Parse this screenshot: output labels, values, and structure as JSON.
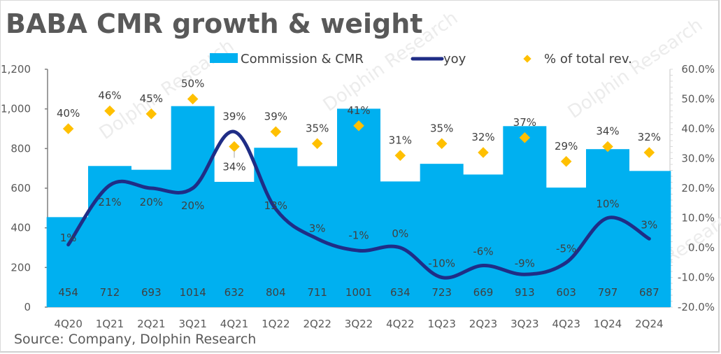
{
  "title": "BABA CMR growth & weight",
  "source": "Source: Company, Dolphin Research",
  "watermark": "Dolphin Research",
  "colors": {
    "bar": "#00b0f0",
    "line": "#1f2d86",
    "marker": "#ffc000",
    "text": "#595959",
    "axis": "#7f7f7f"
  },
  "chart_data": {
    "type": "bar+line+scatter",
    "title": "BABA CMR growth & weight",
    "categories": [
      "4Q20",
      "1Q21",
      "2Q21",
      "3Q21",
      "4Q21",
      "1Q22",
      "2Q22",
      "3Q22",
      "4Q22",
      "1Q23",
      "2Q23",
      "3Q23",
      "4Q23",
      "1Q24",
      "2Q24"
    ],
    "series": [
      {
        "name": "Commission & CMR",
        "type": "bar",
        "axis": "left",
        "values": [
          454,
          712,
          693,
          1014,
          632,
          804,
          711,
          1001,
          634,
          723,
          669,
          913,
          603,
          797,
          687
        ],
        "labels": [
          "454",
          "712",
          "693",
          "1014",
          "632",
          "804",
          "711",
          "1001",
          "634",
          "723",
          "669",
          "913",
          "603",
          "797",
          "687"
        ]
      },
      {
        "name": "yoy",
        "type": "line",
        "axis": "right",
        "values": [
          1,
          21,
          20,
          20,
          39,
          13,
          3,
          -1,
          0,
          -10,
          -6,
          -9,
          -5,
          10,
          3
        ],
        "labels": [
          "1%",
          "21%",
          "20%",
          "20%",
          "39%",
          "13%",
          "3%",
          "-1%",
          "0%",
          "-10%",
          "-6%",
          "-9%",
          "-5%",
          "10%",
          "3%"
        ]
      },
      {
        "name": "% of total rev.",
        "type": "scatter",
        "axis": "right",
        "values": [
          40,
          46,
          45,
          50,
          34,
          39,
          35,
          41,
          31,
          35,
          32,
          37,
          29,
          34,
          32
        ],
        "labels": [
          "40%",
          "46%",
          "45%",
          "50%",
          "34%",
          "39%",
          "35%",
          "41%",
          "31%",
          "35%",
          "32%",
          "37%",
          "29%",
          "34%",
          "32%"
        ]
      }
    ],
    "y_left": {
      "range": [
        0,
        1200
      ],
      "ticks": [
        "0",
        "200",
        "400",
        "600",
        "800",
        "1,000",
        "1,200"
      ],
      "tick_values": [
        0,
        200,
        400,
        600,
        800,
        1000,
        1200
      ]
    },
    "y_right": {
      "range": [
        -20,
        60
      ],
      "ticks": [
        "-20.0%",
        "-10.0%",
        "0.0%",
        "10.0%",
        "20.0%",
        "30.0%",
        "40.0%",
        "50.0%",
        "60.0%"
      ],
      "tick_values": [
        -20,
        -10,
        0,
        10,
        20,
        30,
        40,
        50,
        60
      ]
    },
    "xlabel": "",
    "ylabel": "",
    "grid": false,
    "legend": {
      "position": "top",
      "entries": [
        "Commission & CMR",
        "yoy",
        "% of total rev."
      ]
    }
  }
}
